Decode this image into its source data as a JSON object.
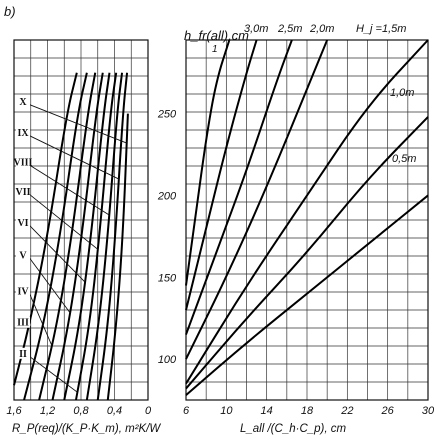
{
  "panel_label": "b)",
  "chart_data": {
    "type": "line",
    "axis_title_center": "h_fr(all),cm",
    "left_panel": {
      "xlabel": "R_P(req)/(K_P·K_m), m²K/W",
      "x_ticks": [
        "1,6",
        "1,2",
        "0,8",
        "0,4",
        "0"
      ],
      "x_tick_values": [
        1.6,
        1.2,
        0.8,
        0.4,
        0
      ],
      "xlim": [
        1.6,
        0
      ],
      "series": [
        {
          "name": "X",
          "x": [
            0.48,
            0.38,
            0.3,
            0.24
          ],
          "y": [
            75,
            120,
            175,
            250
          ]
        },
        {
          "name": "IX",
          "x": [
            0.6,
            0.48,
            0.39,
            0.3,
            0.25
          ],
          "y": [
            75,
            120,
            175,
            250,
            275
          ]
        },
        {
          "name": "VIII",
          "x": [
            0.73,
            0.59,
            0.48,
            0.37,
            0.31
          ],
          "y": [
            75,
            120,
            175,
            250,
            275
          ]
        },
        {
          "name": "VII",
          "x": [
            0.86,
            0.7,
            0.58,
            0.45,
            0.38
          ],
          "y": [
            75,
            120,
            175,
            250,
            275
          ]
        },
        {
          "name": "VI",
          "x": [
            1.0,
            0.82,
            0.68,
            0.53,
            0.46
          ],
          "y": [
            75,
            120,
            175,
            250,
            275
          ]
        },
        {
          "name": "V",
          "x": [
            1.14,
            0.95,
            0.79,
            0.62,
            0.54
          ],
          "y": [
            75,
            120,
            175,
            250,
            275
          ]
        },
        {
          "name": "IV",
          "x": [
            1.3,
            1.09,
            0.91,
            0.72,
            0.63
          ],
          "y": [
            75,
            120,
            175,
            250,
            275
          ]
        },
        {
          "name": "III",
          "x": [
            1.48,
            1.25,
            1.05,
            0.84,
            0.73
          ],
          "y": [
            75,
            120,
            175,
            250,
            275
          ]
        },
        {
          "name": "II",
          "x": [
            1.6,
            1.42,
            1.2,
            0.97,
            0.85
          ],
          "y": [
            84,
            120,
            175,
            250,
            275
          ]
        }
      ],
      "label_lines": [
        {
          "name": "X",
          "y_label": 256,
          "y_end": 232
        },
        {
          "name": "IX",
          "y_label": 237,
          "y_end": 210
        },
        {
          "name": "VIII",
          "y_label": 219,
          "y_end": 188
        },
        {
          "name": "VII",
          "y_label": 201,
          "y_end": 167
        },
        {
          "name": "VI",
          "y_label": 182,
          "y_end": 147
        },
        {
          "name": "V",
          "y_label": 162,
          "y_end": 128
        },
        {
          "name": "IV",
          "y_label": 140,
          "y_end": 108
        },
        {
          "name": "III",
          "y_label": 121,
          "y_end": 91
        },
        {
          "name": "II",
          "y_label": 102,
          "y_end": 80
        }
      ]
    },
    "center_axis": {
      "y_ticks": [
        "100",
        "150",
        "200",
        "250"
      ],
      "y_tick_values": [
        100,
        150,
        200,
        250
      ],
      "ylim": [
        75,
        295
      ]
    },
    "right_panel": {
      "xlabel": "L_all /(C_h·C_p), cm",
      "x_ticks": [
        "6",
        "10",
        "14",
        "18",
        "22",
        "26",
        "30"
      ],
      "x_tick_values": [
        6,
        10,
        14,
        18,
        22,
        26,
        30
      ],
      "xlim": [
        6,
        30
      ],
      "curve_labels": [
        "1",
        "3,0m",
        "2,5m",
        "2,0m",
        "H_j =1,5m",
        "1,0m",
        "0,5m"
      ],
      "series": [
        {
          "name": "1",
          "x": [
            6,
            7,
            8,
            9,
            10.3
          ],
          "y": [
            145,
            190,
            235,
            270,
            295
          ]
        },
        {
          "name": "3,0m",
          "x": [
            6,
            8,
            10,
            12,
            13
          ],
          "y": [
            130,
            180,
            230,
            275,
            295
          ]
        },
        {
          "name": "2,5m",
          "x": [
            6,
            9,
            12,
            15,
            16.5
          ],
          "y": [
            115,
            165,
            215,
            270,
            295
          ]
        },
        {
          "name": "2,0m",
          "x": [
            6,
            10,
            14,
            18,
            20
          ],
          "y": [
            100,
            150,
            205,
            265,
            295
          ]
        },
        {
          "name": "1,5m",
          "x": [
            6,
            12,
            18,
            24,
            30
          ],
          "y": [
            85,
            145,
            200,
            255,
            296
          ]
        },
        {
          "name": "1,0m",
          "x": [
            6,
            12,
            18,
            24,
            30
          ],
          "y": [
            82,
            125,
            165,
            210,
            248
          ]
        },
        {
          "name": "0,5m",
          "x": [
            6,
            12,
            18,
            24,
            30
          ],
          "y": [
            78,
            110,
            140,
            170,
            200
          ]
        }
      ]
    }
  }
}
